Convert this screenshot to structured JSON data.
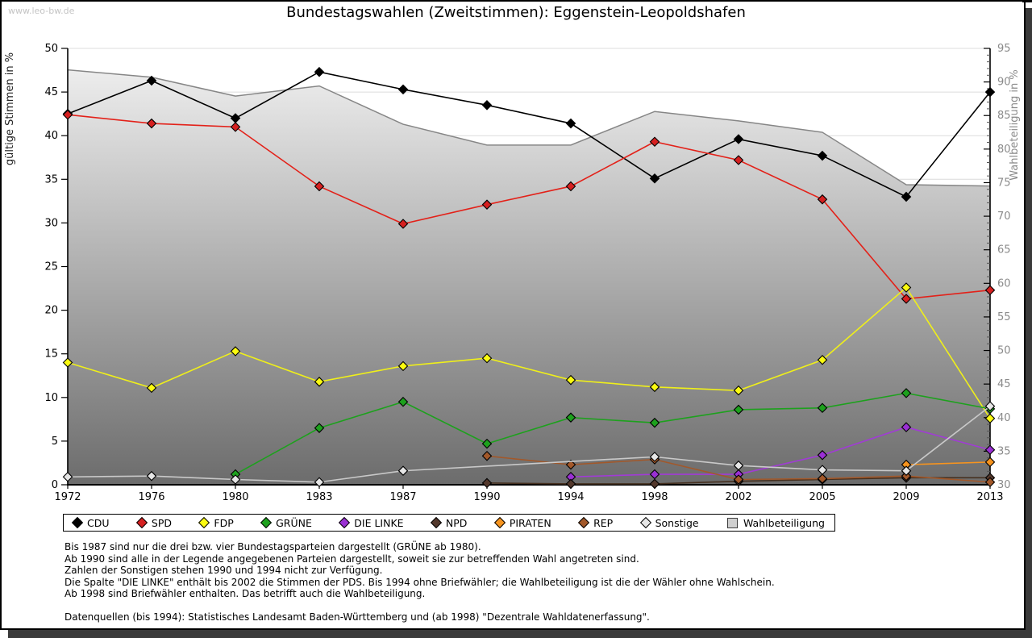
{
  "watermark": "www.leo-bw.de",
  "title": "Bundestagswahlen (Zweitstimmen): Eggenstein-Leopoldshafen",
  "chart_data": {
    "type": "line",
    "categories": [
      "1972",
      "1976",
      "1980",
      "1983",
      "1987",
      "1990",
      "1994",
      "1998",
      "2002",
      "2005",
      "2009",
      "2013"
    ],
    "left_axis": {
      "label": "gültige Stimmen in %",
      "min": 0,
      "max": 50,
      "step": 5
    },
    "right_axis": {
      "label": "Wahlbeteiligung in %",
      "min": 30,
      "max": 95,
      "step": 5
    },
    "grid": true,
    "legend_position": "bottom",
    "series": [
      {
        "name": "CDU",
        "color": "#000000",
        "marker": "#000000",
        "axis": "left",
        "values": [
          42.5,
          46.3,
          42.0,
          47.3,
          45.3,
          43.5,
          41.4,
          35.1,
          39.6,
          37.7,
          33.0,
          45.0
        ]
      },
      {
        "name": "SPD",
        "color": "#e32119",
        "marker": "#d62020",
        "axis": "left",
        "values": [
          42.4,
          41.4,
          41.0,
          34.2,
          29.9,
          32.1,
          34.2,
          39.3,
          37.2,
          32.7,
          21.3,
          22.3
        ]
      },
      {
        "name": "FDP",
        "color": "#efef1a",
        "marker": "#fbfb10",
        "axis": "left",
        "values": [
          14.0,
          11.1,
          15.3,
          11.8,
          13.6,
          14.5,
          12.0,
          11.2,
          10.8,
          14.3,
          22.6,
          7.6
        ]
      },
      {
        "name": "GRÜNE",
        "color": "#1da11d",
        "marker": "#1da11d",
        "axis": "left",
        "values": [
          null,
          null,
          1.2,
          6.5,
          9.5,
          4.7,
          7.7,
          7.1,
          8.6,
          8.8,
          10.5,
          8.7
        ]
      },
      {
        "name": "DIE LINKE",
        "color": "#a13bd6",
        "marker": "#9a30d4",
        "axis": "left",
        "values": [
          null,
          null,
          null,
          null,
          null,
          null,
          0.9,
          1.2,
          1.2,
          3.4,
          6.6,
          4.0
        ]
      },
      {
        "name": "NPD",
        "color": "#46301f",
        "marker": "#53382c",
        "axis": "left",
        "values": [
          null,
          null,
          null,
          null,
          null,
          0.2,
          0.1,
          0.1,
          0.4,
          0.6,
          0.8,
          0.8
        ]
      },
      {
        "name": "PIRATEN",
        "color": "#f7941e",
        "marker": "#f7941e",
        "axis": "left",
        "values": [
          null,
          null,
          null,
          null,
          null,
          null,
          null,
          null,
          null,
          null,
          2.3,
          2.6
        ]
      },
      {
        "name": "REP",
        "color": "#a2582a",
        "marker": "#a2582a",
        "axis": "left",
        "values": [
          null,
          null,
          null,
          null,
          null,
          3.3,
          2.3,
          2.9,
          0.6,
          0.7,
          1.0,
          0.3
        ]
      },
      {
        "name": "Sonstige",
        "color": "#c9c9c9",
        "marker": "#e6e6e6",
        "axis": "left",
        "values": [
          0.9,
          1.0,
          0.6,
          0.3,
          1.6,
          null,
          null,
          3.2,
          2.2,
          1.7,
          1.6,
          9.0
        ]
      }
    ],
    "area_series": {
      "name": "Wahlbeteiligung",
      "axis": "right",
      "stroke": "#868686",
      "fill_top": "#ededed",
      "fill_bottom": "#6c6c6c",
      "values": [
        91.8,
        90.7,
        87.9,
        89.4,
        83.7,
        80.6,
        80.6,
        85.6,
        84.2,
        82.5,
        74.7,
        74.5
      ]
    }
  },
  "legend": {
    "items": [
      {
        "label": "CDU",
        "color": "#000000",
        "shape": "diamond"
      },
      {
        "label": "SPD",
        "color": "#d62020",
        "shape": "diamond"
      },
      {
        "label": "FDP",
        "color": "#fbfb10",
        "shape": "diamond"
      },
      {
        "label": "GRÜNE",
        "color": "#1da11d",
        "shape": "diamond"
      },
      {
        "label": "DIE LINKE",
        "color": "#9a30d4",
        "shape": "diamond"
      },
      {
        "label": "NPD",
        "color": "#53382c",
        "shape": "diamond"
      },
      {
        "label": "PIRATEN",
        "color": "#f7941e",
        "shape": "diamond"
      },
      {
        "label": "REP",
        "color": "#a2582a",
        "shape": "diamond"
      },
      {
        "label": "Sonstige",
        "color": "#e6e6e6",
        "shape": "diamond"
      },
      {
        "label": "Wahlbeteiligung",
        "color": "#cfcfcf",
        "shape": "square"
      }
    ]
  },
  "footnotes": {
    "lines": [
      "Bis 1987 sind nur die drei bzw. vier Bundestagsparteien dargestellt (GRÜNE ab 1980).",
      "Ab 1990 sind alle in der Legende angegebenen Parteien dargestellt, soweit sie zur betreffenden Wahl angetreten sind.",
      "Zahlen der Sonstigen stehen 1990 und 1994 nicht zur Verfügung.",
      "Die Spalte \"DIE LINKE\" enthält bis 2002 die Stimmen der PDS. Bis 1994 ohne Briefwähler; die Wahlbeteiligung ist die der Wähler ohne Wahlschein.",
      "Ab 1998 sind Briefwähler enthalten. Das betrifft auch die Wahlbeteiligung."
    ],
    "source": "Datenquellen (bis 1994): Statistisches Landesamt Baden-Württemberg und (ab 1998) \"Dezentrale Wahldatenerfassung\"."
  }
}
